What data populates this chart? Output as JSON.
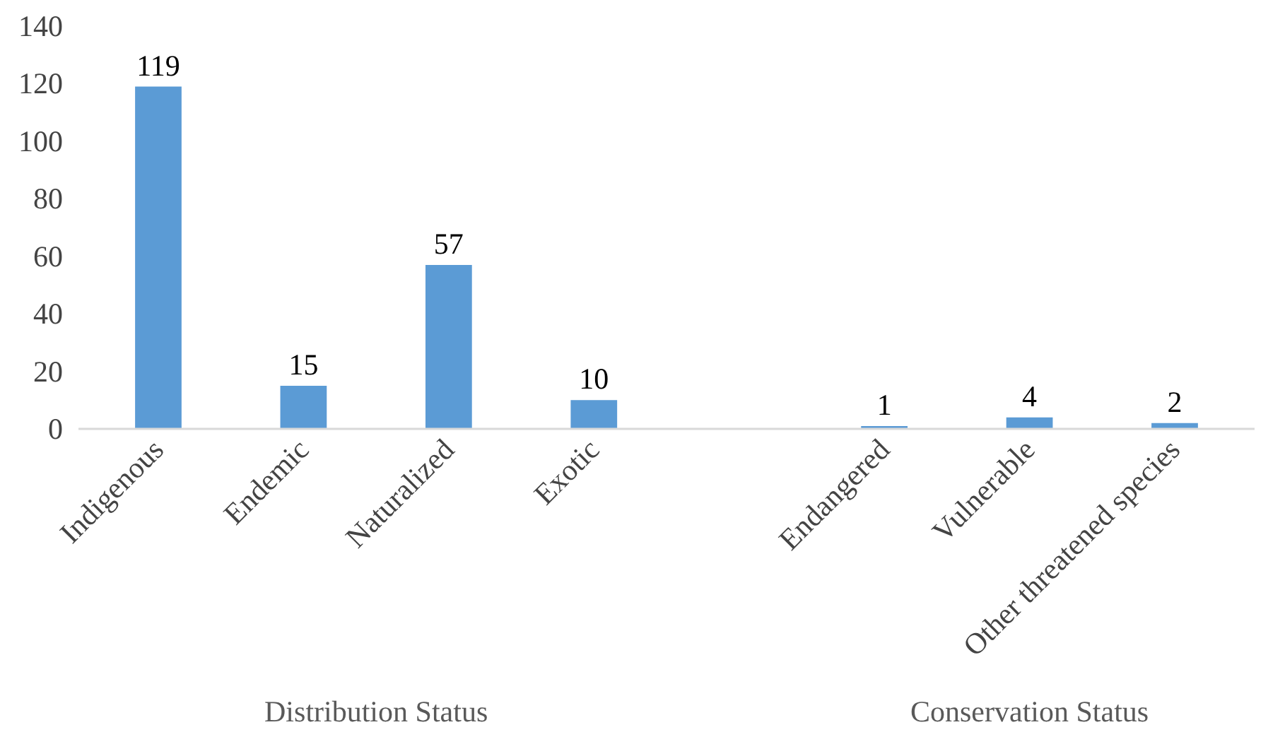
{
  "chart_data": {
    "type": "bar",
    "categories": [
      "Indigenous",
      "Endemic",
      "Naturalized",
      "Exotic",
      null,
      "Endangered",
      "Vulnerable",
      "Other threatened species"
    ],
    "values": [
      119,
      15,
      57,
      10,
      null,
      1,
      4,
      2
    ],
    "color": "#5b9bd5",
    "ylim": [
      0,
      140
    ],
    "yticks": [
      0,
      20,
      40,
      60,
      80,
      100,
      120,
      140
    ],
    "grid": false,
    "data_labels": true,
    "annotations": [
      "Distribution Status",
      "Conservation Status"
    ]
  }
}
